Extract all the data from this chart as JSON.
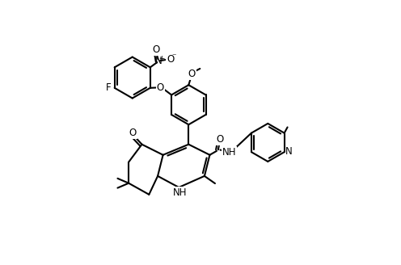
{
  "fig_width": 4.96,
  "fig_height": 3.28,
  "dpi": 100,
  "lw": 1.5,
  "fs": 8.5,
  "bg": "#ffffff",
  "lc": "#000000",
  "xlim": [
    0,
    10
  ],
  "ylim": [
    0,
    10
  ]
}
